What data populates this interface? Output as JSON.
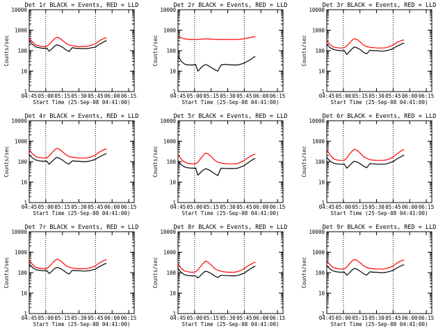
{
  "chart_data": [
    {
      "type": "line",
      "title": "Det 1r BLACK = Events, RED = LLD",
      "xlabel": "Start Time (25-Sep-08 04:41:00)",
      "ylabel": "Counts/sec",
      "x_ticks": [
        "04:45",
        "05:00",
        "05:15",
        "05:30",
        "05:45",
        "06:00",
        "06:15"
      ],
      "y_ticks": [
        "1",
        "10",
        "100",
        "1000",
        "10000"
      ],
      "y_scale": "log",
      "ylim": [
        1,
        10000
      ],
      "x": [
        0,
        3,
        6,
        9,
        12,
        14,
        16,
        18,
        20,
        22,
        24,
        25,
        27,
        30,
        33,
        36,
        39,
        42,
        43,
        45,
        48,
        51,
        54,
        57,
        60,
        63,
        66,
        69,
        70
      ],
      "series": [
        {
          "name": "BLACK = Events",
          "color": "#000000",
          "values": [
            300,
            200,
            150,
            140,
            130,
            130,
            130,
            95,
            115,
            150,
            180,
            190,
            180,
            150,
            110,
            90,
            140,
            130,
            130,
            130,
            125,
            125,
            130,
            140,
            150,
            200,
            240,
            300,
            300
          ]
        },
        {
          "name": "RED = LLD",
          "color": "#ff0000",
          "values": [
            420,
            260,
            190,
            170,
            160,
            160,
            165,
            200,
            260,
            340,
            420,
            450,
            420,
            320,
            230,
            190,
            175,
            165,
            165,
            160,
            160,
            160,
            170,
            190,
            220,
            290,
            360,
            420,
            420
          ]
        }
      ]
    },
    {
      "type": "line",
      "title": "Det 2r BLACK = Events, RED = LLD",
      "xlabel": "Start Time (25-Sep-08 04:41:00)",
      "ylabel": "Counts/sec",
      "x_ticks": [
        "04:45",
        "05:00",
        "05:15",
        "05:30",
        "05:45",
        "06:00",
        "06:15"
      ],
      "y_ticks": [
        "1",
        "10",
        "100",
        "1000",
        "10000"
      ],
      "y_scale": "log",
      "ylim": [
        1,
        10000
      ],
      "x": [
        0,
        3,
        6,
        9,
        12,
        14,
        16,
        18,
        20,
        22,
        24,
        25,
        27,
        30,
        33,
        36,
        39,
        42,
        43,
        45,
        48,
        51,
        54,
        57,
        60,
        63,
        66,
        69,
        70
      ],
      "series": [
        {
          "name": "BLACK = Events",
          "color": "#000000",
          "values": [
            55,
            30,
            22,
            20,
            20,
            20,
            21,
            10,
            13,
            17,
            20,
            21,
            19,
            15,
            12,
            10,
            20,
            21,
            21,
            21,
            20,
            20,
            20,
            22,
            25,
            30,
            38,
            50,
            50
          ]
        },
        {
          "name": "RED = LLD",
          "color": "#ff0000",
          "values": [
            480,
            420,
            380,
            360,
            350,
            350,
            350,
            355,
            360,
            370,
            375,
            380,
            375,
            365,
            355,
            350,
            350,
            350,
            350,
            350,
            350,
            350,
            355,
            365,
            380,
            410,
            440,
            480,
            480
          ]
        }
      ]
    },
    {
      "type": "line",
      "title": "Det 3r BLACK = Events, RED = LLD",
      "xlabel": "Start Time (25-Sep-08 04:41:00)",
      "ylabel": "Counts/sec",
      "x_ticks": [
        "04:45",
        "05:00",
        "05:15",
        "05:30",
        "05:45",
        "06:00",
        "06:15"
      ],
      "y_ticks": [
        "1",
        "10",
        "100",
        "1000",
        "10000"
      ],
      "y_scale": "log",
      "ylim": [
        1,
        10000
      ],
      "x": [
        0,
        3,
        6,
        9,
        12,
        14,
        16,
        18,
        20,
        22,
        24,
        25,
        27,
        30,
        33,
        36,
        39,
        42,
        43,
        45,
        48,
        51,
        54,
        57,
        60,
        63,
        66,
        69,
        70
      ],
      "series": [
        {
          "name": "BLACK = Events",
          "color": "#000000",
          "values": [
            200,
            140,
            115,
            105,
            100,
            100,
            100,
            65,
            85,
            110,
            140,
            150,
            140,
            115,
            85,
            70,
            105,
            100,
            100,
            100,
            95,
            95,
            100,
            110,
            125,
            160,
            190,
            230,
            230
          ]
        },
        {
          "name": "RED = LLD",
          "color": "#ff0000",
          "values": [
            300,
            200,
            150,
            140,
            135,
            135,
            140,
            170,
            220,
            290,
            360,
            380,
            360,
            270,
            190,
            160,
            145,
            140,
            140,
            135,
            135,
            135,
            140,
            160,
            190,
            240,
            290,
            330,
            330
          ]
        }
      ]
    },
    {
      "type": "line",
      "title": "Det 4r BLACK = Events, RED = LLD",
      "xlabel": "Start Time (25-Sep-08 04:41:00)",
      "ylabel": "Counts/sec",
      "x_ticks": [
        "04:45",
        "05:00",
        "05:15",
        "05:30",
        "05:45",
        "06:00",
        "06:15"
      ],
      "y_ticks": [
        "1",
        "10",
        "100",
        "1000",
        "10000"
      ],
      "y_scale": "log",
      "ylim": [
        1,
        10000
      ],
      "x": [
        0,
        3,
        6,
        9,
        12,
        14,
        16,
        18,
        20,
        22,
        24,
        25,
        27,
        30,
        33,
        36,
        39,
        42,
        43,
        45,
        48,
        51,
        54,
        57,
        60,
        63,
        66,
        69,
        70
      ],
      "series": [
        {
          "name": "BLACK = Events",
          "color": "#000000",
          "values": [
            220,
            150,
            120,
            110,
            105,
            105,
            105,
            75,
            95,
            120,
            150,
            160,
            150,
            120,
            90,
            75,
            110,
            105,
            105,
            105,
            100,
            100,
            105,
            115,
            130,
            165,
            200,
            240,
            240
          ]
        },
        {
          "name": "RED = LLD",
          "color": "#ff0000",
          "values": [
            380,
            240,
            175,
            160,
            150,
            150,
            155,
            190,
            250,
            330,
            410,
            440,
            410,
            310,
            220,
            180,
            165,
            155,
            155,
            150,
            150,
            150,
            160,
            180,
            210,
            280,
            350,
            410,
            410
          ]
        }
      ]
    },
    {
      "type": "line",
      "title": "Det 5r BLACK = Events, RED = LLD",
      "xlabel": "Start Time (25-Sep-08 04:41:00)",
      "ylabel": "Counts/sec",
      "x_ticks": [
        "04:45",
        "05:00",
        "05:15",
        "05:30",
        "05:45",
        "06:00",
        "06:15"
      ],
      "y_ticks": [
        "1",
        "10",
        "100",
        "1000",
        "10000"
      ],
      "y_scale": "log",
      "ylim": [
        1,
        10000
      ],
      "x": [
        0,
        3,
        6,
        9,
        12,
        14,
        16,
        18,
        20,
        22,
        24,
        25,
        27,
        30,
        33,
        36,
        39,
        42,
        43,
        45,
        48,
        51,
        54,
        57,
        60,
        63,
        66,
        69,
        70
      ],
      "series": [
        {
          "name": "BLACK = Events",
          "color": "#000000",
          "values": [
            110,
            70,
            55,
            50,
            48,
            48,
            48,
            22,
            28,
            36,
            42,
            45,
            42,
            34,
            26,
            21,
            48,
            47,
            47,
            46,
            46,
            46,
            48,
            55,
            65,
            85,
            110,
            140,
            140
          ]
        },
        {
          "name": "RED = LLD",
          "color": "#ff0000",
          "values": [
            220,
            130,
            95,
            82,
            78,
            78,
            80,
            95,
            130,
            180,
            240,
            260,
            240,
            180,
            120,
            95,
            85,
            80,
            80,
            78,
            78,
            78,
            82,
            95,
            115,
            150,
            190,
            230,
            230
          ]
        }
      ]
    },
    {
      "type": "line",
      "title": "Det 6r BLACK = Events, RED = LLD",
      "xlabel": "Start Time (25-Sep-08 04:41:00)",
      "ylabel": "Counts/sec",
      "x_ticks": [
        "04:45",
        "05:00",
        "05:15",
        "05:30",
        "05:45",
        "06:00",
        "06:15"
      ],
      "y_ticks": [
        "1",
        "10",
        "100",
        "1000",
        "10000"
      ],
      "y_scale": "log",
      "ylim": [
        1,
        10000
      ],
      "x": [
        0,
        3,
        6,
        9,
        12,
        14,
        16,
        18,
        20,
        22,
        24,
        25,
        27,
        30,
        33,
        36,
        39,
        42,
        43,
        45,
        48,
        51,
        54,
        57,
        60,
        63,
        66,
        69,
        70
      ],
      "series": [
        {
          "name": "BLACK = Events",
          "color": "#000000",
          "values": [
            160,
            105,
            85,
            78,
            75,
            75,
            75,
            48,
            60,
            78,
            98,
            105,
            98,
            80,
            62,
            50,
            80,
            78,
            78,
            76,
            75,
            75,
            78,
            88,
            100,
            130,
            160,
            200,
            200
          ]
        },
        {
          "name": "RED = LLD",
          "color": "#ff0000",
          "values": [
            380,
            210,
            140,
            120,
            115,
            115,
            118,
            150,
            210,
            290,
            370,
            400,
            370,
            270,
            180,
            145,
            125,
            118,
            118,
            115,
            115,
            115,
            122,
            140,
            170,
            230,
            300,
            380,
            380
          ]
        }
      ]
    },
    {
      "type": "line",
      "title": "Det 7r BLACK = Events, RED = LLD",
      "xlabel": "Start Time (25-Sep-08 04:41:00)",
      "ylabel": "Counts/sec",
      "x_ticks": [
        "04:45",
        "05:00",
        "05:15",
        "05:30",
        "05:45",
        "06:00",
        "06:15"
      ],
      "y_ticks": [
        "1",
        "10",
        "100",
        "1000",
        "10000"
      ],
      "y_scale": "log",
      "ylim": [
        1,
        10000
      ],
      "x": [
        0,
        3,
        6,
        9,
        12,
        14,
        16,
        18,
        20,
        22,
        24,
        25,
        27,
        30,
        33,
        36,
        39,
        42,
        43,
        45,
        48,
        51,
        54,
        57,
        60,
        63,
        66,
        69,
        70
      ],
      "series": [
        {
          "name": "BLACK = Events",
          "color": "#000000",
          "values": [
            270,
            180,
            140,
            130,
            125,
            125,
            125,
            90,
            110,
            140,
            170,
            180,
            170,
            140,
            105,
            85,
            130,
            125,
            125,
            125,
            120,
            120,
            125,
            135,
            150,
            190,
            230,
            280,
            280
          ]
        },
        {
          "name": "RED = LLD",
          "color": "#ff0000",
          "values": [
            420,
            250,
            180,
            165,
            155,
            155,
            160,
            195,
            255,
            335,
            420,
            450,
            420,
            320,
            225,
            185,
            170,
            160,
            160,
            155,
            155,
            155,
            165,
            185,
            215,
            285,
            355,
            420,
            420
          ]
        }
      ]
    },
    {
      "type": "line",
      "title": "Det 8r BLACK = Events, RED = LLD",
      "xlabel": "Start Time (25-Sep-08 04:41:00)",
      "ylabel": "Counts/sec",
      "x_ticks": [
        "04:45",
        "05:00",
        "05:15",
        "05:30",
        "05:45",
        "06:00",
        "06:15"
      ],
      "y_ticks": [
        "1",
        "10",
        "100",
        "1000",
        "10000"
      ],
      "y_scale": "log",
      "ylim": [
        1,
        10000
      ],
      "x": [
        0,
        3,
        6,
        9,
        12,
        14,
        16,
        18,
        20,
        22,
        24,
        25,
        27,
        30,
        33,
        36,
        39,
        42,
        43,
        45,
        48,
        51,
        54,
        57,
        60,
        63,
        66,
        69,
        70
      ],
      "series": [
        {
          "name": "BLACK = Events",
          "color": "#000000",
          "values": [
            160,
            100,
            80,
            72,
            70,
            70,
            70,
            55,
            68,
            88,
            110,
            118,
            110,
            90,
            70,
            58,
            75,
            72,
            72,
            72,
            70,
            70,
            72,
            82,
            95,
            125,
            160,
            200,
            200
          ]
        },
        {
          "name": "RED = LLD",
          "color": "#ff0000",
          "values": [
            280,
            160,
            120,
            110,
            105,
            105,
            110,
            140,
            190,
            260,
            330,
            360,
            330,
            240,
            160,
            130,
            115,
            108,
            108,
            105,
            105,
            105,
            112,
            130,
            160,
            210,
            260,
            320,
            320
          ]
        }
      ]
    },
    {
      "type": "line",
      "title": "Det 9r BLACK = Events, RED = LLD",
      "xlabel": "Start Time (25-Sep-08 04:41:00)",
      "ylabel": "Counts/sec",
      "x_ticks": [
        "04:45",
        "05:00",
        "05:15",
        "05:30",
        "05:45",
        "06:00",
        "06:15"
      ],
      "y_ticks": [
        "1",
        "10",
        "100",
        "1000",
        "10000"
      ],
      "y_scale": "log",
      "ylim": [
        1,
        10000
      ],
      "x": [
        0,
        3,
        6,
        9,
        12,
        14,
        16,
        18,
        20,
        22,
        24,
        25,
        27,
        30,
        33,
        36,
        39,
        42,
        43,
        45,
        48,
        51,
        54,
        57,
        60,
        63,
        66,
        69,
        70
      ],
      "series": [
        {
          "name": "BLACK = Events",
          "color": "#000000",
          "values": [
            220,
            150,
            120,
            110,
            105,
            105,
            105,
            75,
            92,
            120,
            150,
            160,
            150,
            120,
            90,
            75,
            110,
            105,
            105,
            105,
            100,
            100,
            105,
            115,
            130,
            165,
            200,
            240,
            240
          ]
        },
        {
          "name": "RED = LLD",
          "color": "#ff0000",
          "values": [
            380,
            240,
            175,
            160,
            150,
            150,
            155,
            190,
            250,
            330,
            410,
            440,
            410,
            310,
            220,
            180,
            165,
            155,
            155,
            150,
            150,
            150,
            160,
            180,
            210,
            280,
            350,
            410,
            410
          ]
        }
      ]
    }
  ]
}
